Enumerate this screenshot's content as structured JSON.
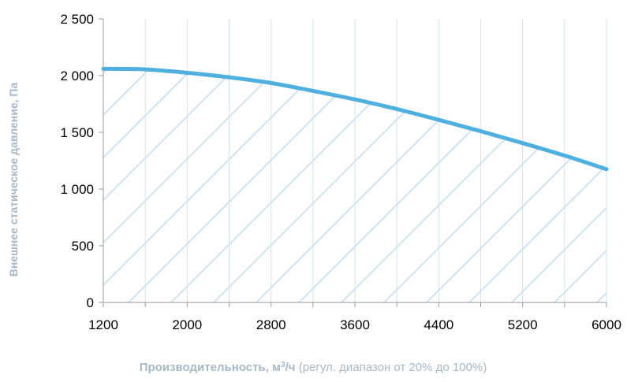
{
  "chart_data": {
    "type": "area",
    "x": [
      1200,
      1600,
      2000,
      2400,
      2800,
      3200,
      3600,
      4000,
      4400,
      4800,
      5200,
      5600,
      6000
    ],
    "series": [
      {
        "values": [
          2060,
          2055,
          2025,
          1985,
          1935,
          1865,
          1790,
          1705,
          1610,
          1510,
          1405,
          1295,
          1175
        ],
        "color": "#4fb0df"
      }
    ],
    "x_ticks": [
      1200,
      2000,
      2800,
      3600,
      4400,
      5200,
      6000
    ],
    "x_tick_labels": [
      "1200",
      "2000",
      "2800",
      "3600",
      "4400",
      "5200",
      "6000"
    ],
    "y_ticks": [
      0,
      500,
      1000,
      1500,
      2000,
      2500
    ],
    "y_tick_labels": [
      "0",
      "500",
      "1 000",
      "1 500",
      "2 000",
      "2 500"
    ],
    "xlim": [
      1200,
      6000
    ],
    "ylim": [
      0,
      2500
    ],
    "ylabel": "Внешнее статическое давление, Па",
    "xlabel_bold": "Производительность, м",
    "xlabel_sup": "3",
    "xlabel_unit": "/ч",
    "xlabel_note": " (регул. диапазон от 20% до 100%)",
    "grid": "vertical",
    "fill": "diagonal-hatch",
    "colors": {
      "line": "#4fb0df",
      "hatch": "#cfe4f0",
      "grid": "#d2e2ee",
      "axis": "#9a9a9a",
      "label": "#a6b9c8"
    }
  }
}
